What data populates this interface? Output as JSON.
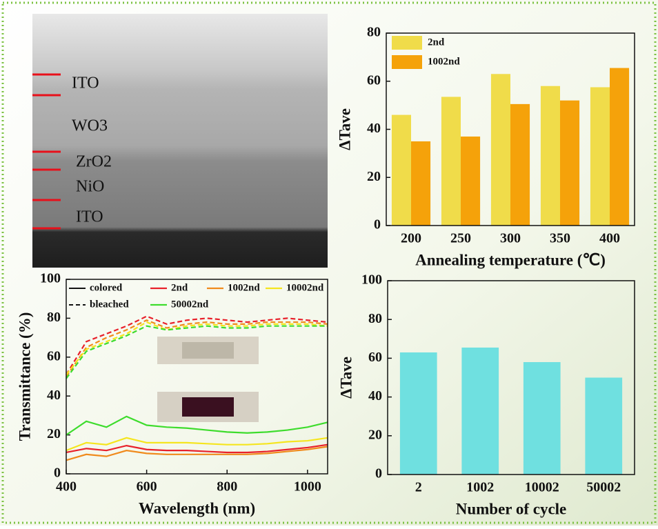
{
  "image": {
    "labels": [
      "ITO",
      "WO3",
      "ZrO2",
      "NiO",
      "ITO"
    ]
  },
  "chart_data": [
    {
      "type": "bar",
      "xlabel": "Annealing temperature (℃)",
      "ylabel": "ΔTave",
      "categories": [
        200,
        250,
        300,
        350,
        400
      ],
      "series": [
        {
          "name": "2nd",
          "color": "#f0dc4a",
          "values": [
            46,
            53.5,
            63,
            58,
            57.5
          ]
        },
        {
          "name": "1002nd",
          "color": "#f5a20a",
          "values": [
            35,
            37,
            50.5,
            52,
            65.5
          ]
        }
      ],
      "ylim": [
        0,
        80
      ],
      "yticks": [
        0,
        20,
        40,
        60,
        80
      ],
      "legend": "upper left"
    },
    {
      "type": "line",
      "xlabel": "Wavelength (nm)",
      "ylabel": "Transmittance (%)",
      "x": [
        400,
        450,
        500,
        550,
        600,
        650,
        700,
        750,
        800,
        850,
        900,
        950,
        1000,
        1050
      ],
      "line_styles": [
        {
          "label": "colored",
          "dashed": false
        },
        {
          "label": "bleached",
          "dashed": true
        }
      ],
      "series": [
        {
          "name": "2nd",
          "color": "#e8202a",
          "colored": [
            11,
            13,
            12,
            14.5,
            12.5,
            12,
            12,
            11.5,
            11,
            11,
            11.5,
            12.5,
            13.5,
            15
          ],
          "bleached": [
            51,
            68,
            72,
            76,
            81,
            77,
            79,
            80,
            79,
            78,
            79,
            80,
            79,
            78
          ]
        },
        {
          "name": "1002nd",
          "color": "#f08a1c",
          "colored": [
            7,
            10,
            9,
            12,
            10.5,
            10,
            10,
            10,
            10,
            10,
            10.5,
            11.5,
            12.5,
            14
          ],
          "bleached": [
            50,
            65,
            70,
            74,
            79,
            75,
            77,
            78,
            77,
            77,
            78,
            78,
            78,
            77
          ]
        },
        {
          "name": "10002nd",
          "color": "#f5e51e",
          "colored": [
            12,
            16,
            15,
            18.5,
            16,
            16,
            16,
            15.5,
            15,
            15,
            15.5,
            16.5,
            17,
            18.5
          ],
          "bleached": [
            51,
            64,
            68,
            72,
            78,
            74,
            76,
            77,
            76,
            76,
            77,
            77,
            77,
            76
          ]
        },
        {
          "name": "50002nd",
          "color": "#3ddc2c",
          "colored": [
            20,
            27,
            24,
            29.5,
            25,
            24,
            23.5,
            22.5,
            21.5,
            21,
            21.5,
            22.5,
            24,
            26.5
          ],
          "bleached": [
            49,
            63,
            67,
            71,
            76,
            74,
            75,
            76,
            75,
            75,
            76,
            76,
            76,
            76
          ]
        }
      ],
      "xlim": [
        400,
        1050
      ],
      "xticks": [
        400,
        600,
        800,
        1000
      ],
      "ylim": [
        0,
        100
      ],
      "yticks": [
        0,
        20,
        40,
        60,
        80,
        100
      ],
      "legend": "upper left"
    },
    {
      "type": "bar",
      "xlabel": "Number of cycle",
      "ylabel": "ΔTave",
      "categories": [
        "2",
        "1002",
        "10002",
        "50002"
      ],
      "values": [
        63,
        65.5,
        58,
        50
      ],
      "color": "#6fe0e0",
      "ylim": [
        0,
        100
      ],
      "yticks": [
        0,
        20,
        40,
        60,
        80,
        100
      ]
    }
  ]
}
